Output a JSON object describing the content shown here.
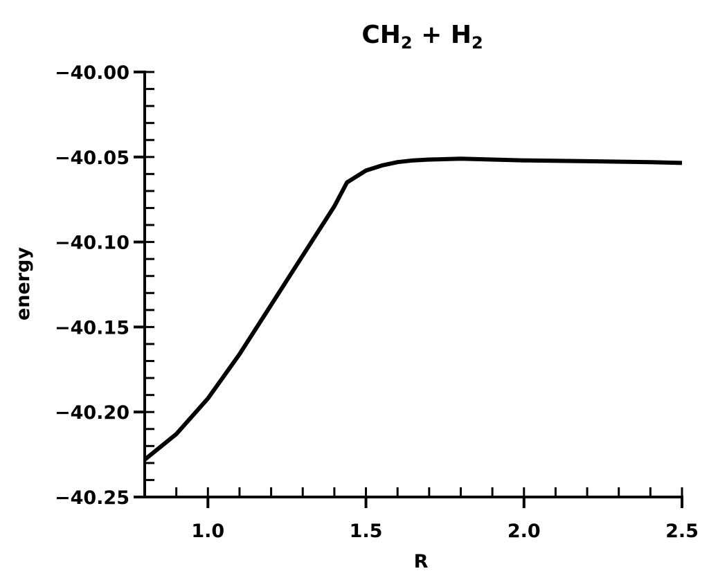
{
  "chart_data": {
    "type": "line",
    "title": {
      "main": "CH",
      "sub1": "2",
      "mid": " + H",
      "sub2": "2"
    },
    "xlabel": "R",
    "ylabel": "energy",
    "xlim": [
      0.8,
      2.5
    ],
    "ylim": [
      -40.25,
      -40.0
    ],
    "x_ticks": [
      1.0,
      1.5,
      2.0,
      2.5
    ],
    "x_tick_labels": [
      "1.0",
      "1.5",
      "2.0",
      "2.5"
    ],
    "x_minor_step": 0.1,
    "y_ticks": [
      -40.0,
      -40.05,
      -40.1,
      -40.15,
      -40.2,
      -40.25
    ],
    "y_tick_labels": [
      "−40.00",
      "−40.05",
      "−40.10",
      "−40.15",
      "−40.20",
      "−40.25"
    ],
    "y_minor_step": 0.01,
    "grid": false,
    "series": [
      {
        "color": "#000000",
        "x": [
          0.8,
          0.9,
          1.0,
          1.1,
          1.2,
          1.3,
          1.4,
          1.44,
          1.5,
          1.55,
          1.6,
          1.65,
          1.7,
          1.8,
          1.9,
          2.0,
          2.2,
          2.4,
          2.5
        ],
        "y": [
          -40.228,
          -40.213,
          -40.192,
          -40.166,
          -40.137,
          -40.108,
          -40.079,
          -40.065,
          -40.058,
          -40.055,
          -40.053,
          -40.052,
          -40.0515,
          -40.051,
          -40.0515,
          -40.052,
          -40.0525,
          -40.053,
          -40.0535
        ]
      }
    ]
  }
}
